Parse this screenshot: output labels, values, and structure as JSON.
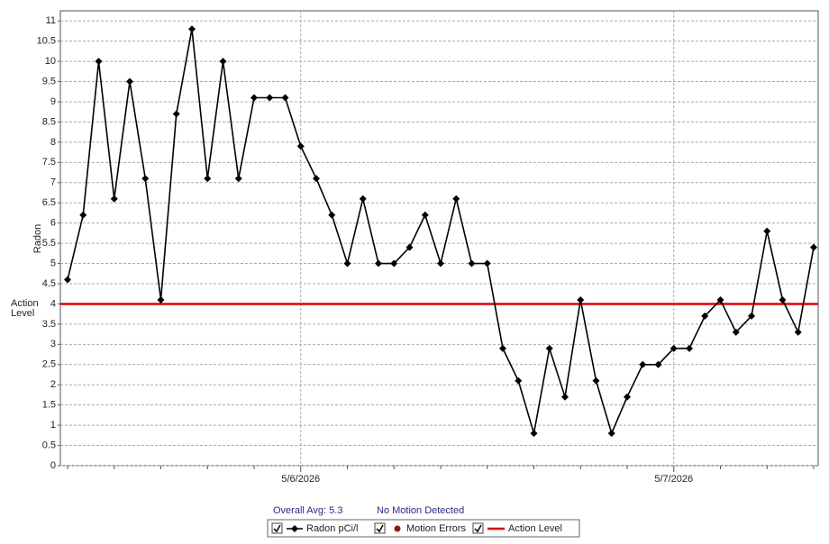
{
  "chart_data": {
    "type": "line",
    "ylabel": "Radon",
    "categories": [
      null,
      null,
      null,
      null,
      null,
      null,
      null,
      null,
      null,
      null,
      null,
      null,
      null,
      null,
      null,
      "5/6/2026",
      null,
      null,
      null,
      null,
      null,
      null,
      null,
      null,
      null,
      null,
      null,
      null,
      null,
      null,
      null,
      null,
      null,
      null,
      null,
      null,
      null,
      null,
      null,
      "5/7/2026",
      null,
      null,
      null,
      null,
      null,
      null,
      null,
      null,
      null
    ],
    "series": [
      {
        "name": "Radon pCi/l",
        "color": "#000000",
        "values": [
          4.6,
          6.2,
          10,
          6.6,
          9.5,
          7.1,
          4.1,
          8.7,
          10.8,
          7.1,
          10,
          7.1,
          9.1,
          9.1,
          9.1,
          7.9,
          7.1,
          6.2,
          5.0,
          6.6,
          5.0,
          5.0,
          5.4,
          6.2,
          5.0,
          6.6,
          5.0,
          5.0,
          2.9,
          2.1,
          0.8,
          2.9,
          1.7,
          4.1,
          2.1,
          0.8,
          1.7,
          2.5,
          2.5,
          2.9,
          2.9,
          3.7,
          4.1,
          3.3,
          3.7,
          5.8,
          4.1,
          3.3,
          5.4
        ]
      }
    ],
    "action_level": {
      "name": "Action Level",
      "value": 4,
      "color": "#e00000"
    },
    "motion_errors": {
      "name": "Motion Errors",
      "color": "#8b1a1a"
    },
    "ylim": [
      0,
      11.25
    ],
    "yticks": [
      0,
      0.5,
      1,
      1.5,
      2,
      2.5,
      3,
      3.5,
      4,
      4.5,
      5,
      5.5,
      6,
      6.5,
      7,
      7.5,
      8,
      8.5,
      9,
      9.5,
      10,
      10.5,
      11
    ],
    "grid": true,
    "footer": {
      "average": "Overall Avg: 5.3",
      "motion_status": "No Motion Detected"
    }
  }
}
